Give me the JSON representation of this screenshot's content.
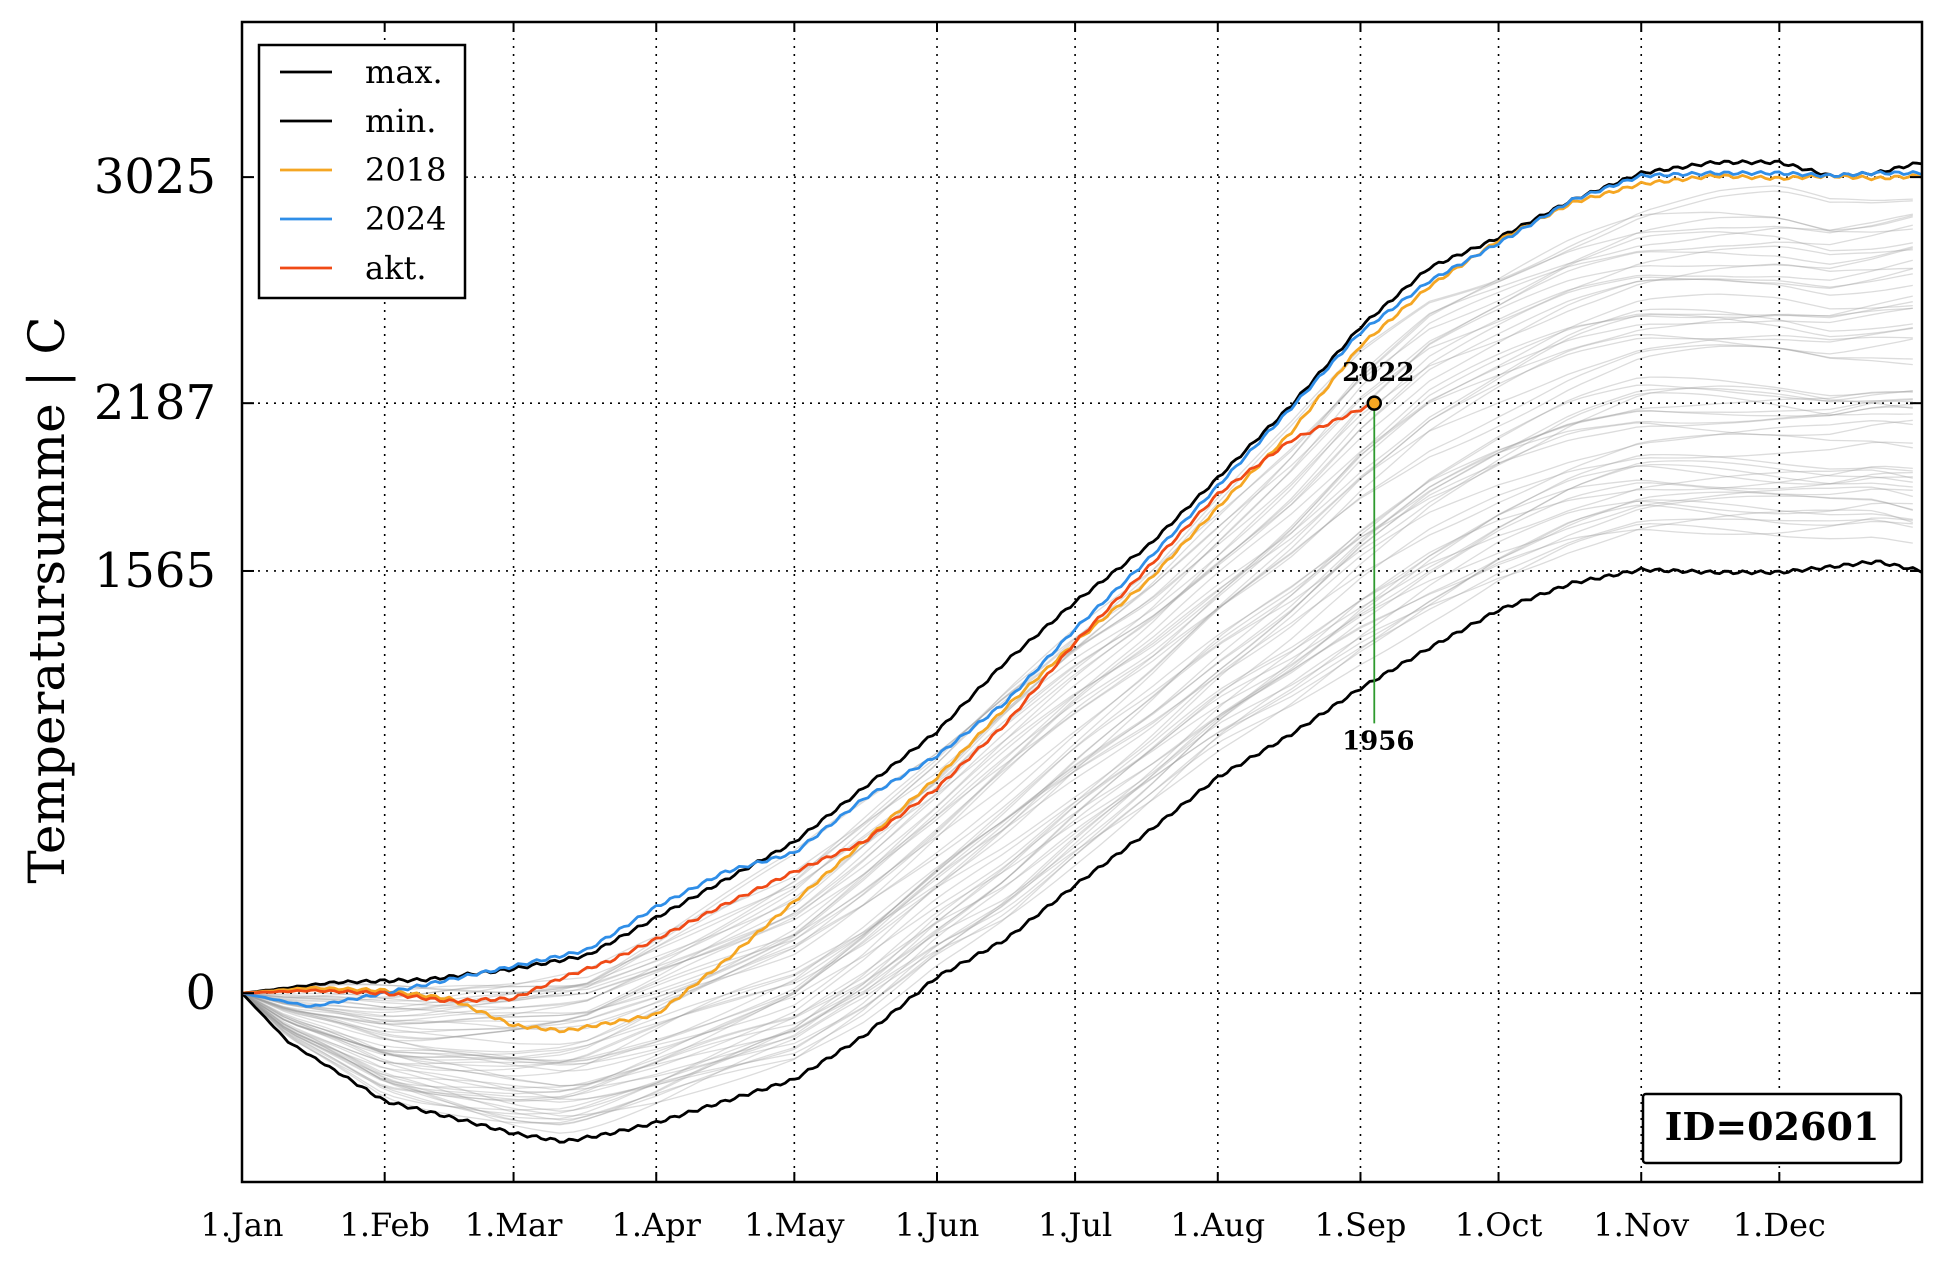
{
  "chart_data": {
    "type": "line",
    "ylabel": "Temperatursumme | C",
    "x_tick_labels": [
      "1.Jan",
      "1.Feb",
      "1.Mar",
      "1.Apr",
      "1.May",
      "1.Jun",
      "1.Jul",
      "1.Aug",
      "1.Sep",
      "1.Oct",
      "1.Nov",
      "1.Dec"
    ],
    "x_tick_days": [
      0,
      31,
      59,
      90,
      120,
      151,
      181,
      212,
      243,
      273,
      304,
      334
    ],
    "xlim": [
      0,
      365
    ],
    "ylim": [
      -700,
      3600
    ],
    "y_ticks": [
      0,
      1565,
      2187,
      3025
    ],
    "y_tick_labels": [
      "0",
      "1565",
      "2187",
      "3025"
    ],
    "grid": true,
    "legend_position": "top-left",
    "legend": [
      {
        "label": "max.",
        "color": "#000000"
      },
      {
        "label": "min.",
        "color": "#000000"
      },
      {
        "label": "2018",
        "color": "#f5a623"
      },
      {
        "label": "2024",
        "color": "#2f8ee8"
      },
      {
        "label": "akt.",
        "color": "#f04a16"
      }
    ],
    "series": [
      {
        "name": "max.",
        "color": "#000000",
        "x": [
          0,
          20,
          40,
          59,
          75,
          90,
          105,
          120,
          135,
          151,
          166,
          181,
          197,
          212,
          228,
          243,
          258,
          273,
          289,
          304,
          320,
          334,
          345,
          355,
          365
        ],
        "y": [
          0,
          40,
          50,
          90,
          140,
          280,
          420,
          560,
          760,
          970,
          1230,
          1450,
          1660,
          1910,
          2180,
          2470,
          2690,
          2800,
          2940,
          3040,
          3080,
          3080,
          3030,
          3040,
          3080
        ]
      },
      {
        "name": "min.",
        "color": "#000000",
        "x": [
          0,
          10,
          31,
          50,
          59,
          70,
          80,
          90,
          105,
          120,
          135,
          151,
          166,
          181,
          197,
          212,
          228,
          243,
          258,
          273,
          289,
          304,
          320,
          334,
          345,
          355,
          365
        ],
        "y": [
          0,
          -180,
          -400,
          -480,
          -520,
          -550,
          -520,
          -480,
          -400,
          -320,
          -160,
          60,
          200,
          400,
          600,
          800,
          960,
          1130,
          1280,
          1420,
          1520,
          1570,
          1560,
          1560,
          1580,
          1600,
          1565
        ]
      },
      {
        "name": "2018",
        "color": "#f5a623",
        "x": [
          0,
          15,
          31,
          45,
          59,
          70,
          80,
          90,
          105,
          120,
          135,
          151,
          166,
          181,
          197,
          212,
          228,
          243,
          258,
          273,
          289,
          304,
          320,
          334,
          345,
          355,
          365
        ],
        "y": [
          0,
          20,
          10,
          -20,
          -120,
          -140,
          -110,
          -80,
          120,
          340,
          560,
          800,
          1060,
          1300,
          1530,
          1800,
          2080,
          2400,
          2620,
          2790,
          2930,
          3000,
          3030,
          3020,
          3030,
          3020,
          3030
        ]
      },
      {
        "name": "2024",
        "color": "#2f8ee8",
        "x": [
          0,
          15,
          31,
          45,
          59,
          75,
          90,
          105,
          120,
          135,
          151,
          166,
          181,
          197,
          212,
          228,
          243,
          258,
          273,
          289,
          304,
          320,
          334,
          345,
          355,
          365
        ],
        "y": [
          0,
          -50,
          0,
          50,
          100,
          160,
          320,
          450,
          520,
          720,
          880,
          1080,
          1350,
          1610,
          1880,
          2170,
          2450,
          2640,
          2780,
          2940,
          3030,
          3040,
          3040,
          3030,
          3040,
          3040
        ]
      },
      {
        "name": "akt.",
        "color": "#f04a16",
        "x": [
          0,
          15,
          31,
          45,
          59,
          70,
          80,
          90,
          105,
          120,
          135,
          151,
          166,
          181,
          197,
          212,
          228,
          246
        ],
        "y": [
          0,
          10,
          0,
          -30,
          -20,
          60,
          120,
          200,
          330,
          450,
          560,
          760,
          1000,
          1300,
          1580,
          1850,
          2050,
          2187
        ]
      }
    ],
    "annotations": [
      {
        "text": "2022",
        "x": 246,
        "y": 2187,
        "position": "above"
      },
      {
        "text": "1956",
        "x": 246,
        "y": 1000,
        "position": "below"
      }
    ],
    "current_point": {
      "x": 246,
      "y": 2187,
      "low_y": 1000,
      "line_color": "#2e9a2e"
    },
    "id_box": "ID=02601"
  }
}
